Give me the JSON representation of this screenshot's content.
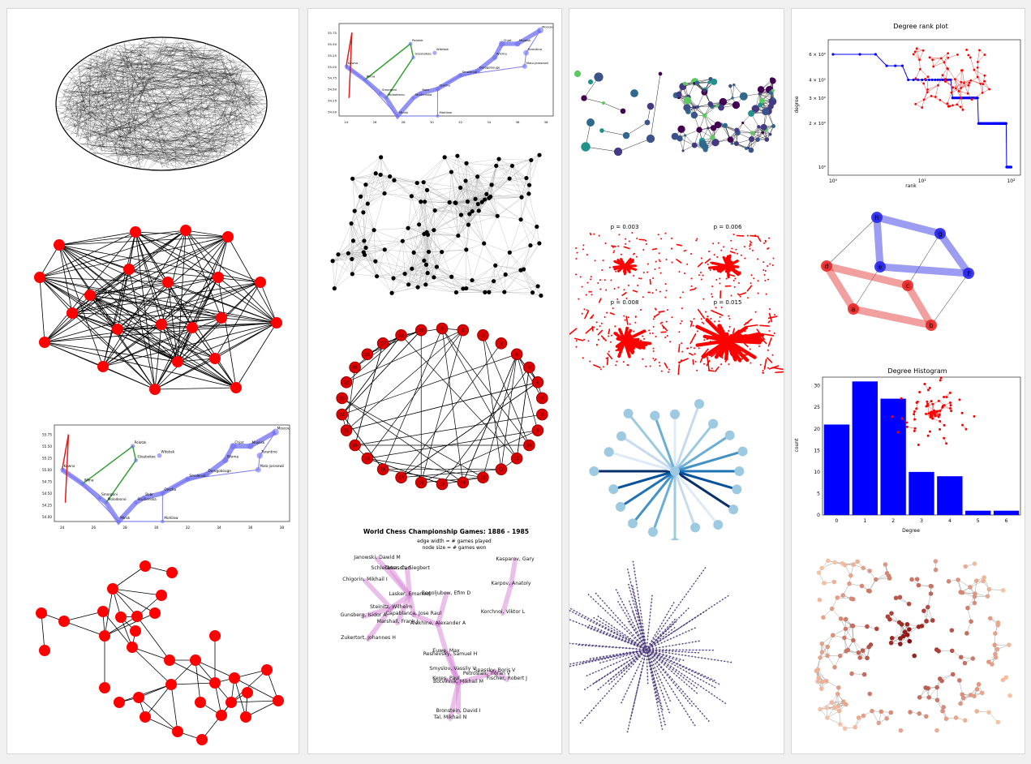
{
  "gallery": {
    "colors": {
      "node_red": "#ff0000",
      "node_black": "#000000",
      "node_blue": "#0000ff",
      "edge_black": "#000000",
      "edge_gray": "#b8b8b8",
      "chess_purple": "#d88cd8",
      "route_blue": "#6f6ff2",
      "route_green": "#34a234",
      "route_red": "#e41a1c",
      "tree_purple": "#4a3a7a",
      "orange_light": "#f6c2a6",
      "orange_dark": "#8a0a0a"
    },
    "napoleon": {
      "cities": [
        {
          "name": "Moscou",
          "x": 37.6,
          "y": 55.8
        },
        {
          "name": "Chjat",
          "x": 34.9,
          "y": 55.5
        },
        {
          "name": "Mojaisk",
          "x": 36.0,
          "y": 55.5
        },
        {
          "name": "Tarantino",
          "x": 36.6,
          "y": 55.3
        },
        {
          "name": "Wixma",
          "x": 34.4,
          "y": 55.2
        },
        {
          "name": "Malo-jarosewii",
          "x": 36.5,
          "y": 55.0
        },
        {
          "name": "Dorogobouge",
          "x": 33.2,
          "y": 54.9
        },
        {
          "name": "Smolensk",
          "x": 32.0,
          "y": 54.8
        },
        {
          "name": "Orscha",
          "x": 30.4,
          "y": 54.5
        },
        {
          "name": "Witebsk",
          "x": 30.2,
          "y": 55.3
        },
        {
          "name": "Polotzk",
          "x": 28.5,
          "y": 55.5
        },
        {
          "name": "Gloubokoe",
          "x": 28.7,
          "y": 55.2
        },
        {
          "name": "Kowno",
          "x": 24.0,
          "y": 55.0
        },
        {
          "name": "Wilna",
          "x": 25.3,
          "y": 54.7
        },
        {
          "name": "Smorgoni",
          "x": 26.4,
          "y": 54.4
        },
        {
          "name": "Molodexno",
          "x": 26.8,
          "y": 54.3
        },
        {
          "name": "Minsk",
          "x": 27.6,
          "y": 53.9
        },
        {
          "name": "Studienska",
          "x": 28.7,
          "y": 54.3
        },
        {
          "name": "Bobr",
          "x": 29.2,
          "y": 54.4
        },
        {
          "name": "Mohilow",
          "x": 30.4,
          "y": 53.9
        }
      ]
    },
    "chess": {
      "title": "World Chess Championship Games: 1886 - 1985",
      "note1": "edge width = # games played",
      "note2": "node size = # games won",
      "players": [
        {
          "name": "Janowski, Dawid M"
        },
        {
          "name": "Schlechter, Carl"
        },
        {
          "name": "Marshall, Frank J"
        },
        {
          "name": "Tarrasch, Siegbert"
        },
        {
          "name": "Chigorin, Mikhail I"
        },
        {
          "name": "Lasker, Emanuel"
        },
        {
          "name": "Bogoljubow, Efim D"
        },
        {
          "name": "Steinitz, Wilhelm"
        },
        {
          "name": "Gunsberg, Isidor A"
        },
        {
          "name": "Capablanca, Jose Raul"
        },
        {
          "name": "Alekhine, Alexander A"
        },
        {
          "name": "Zukertort, Johannes H"
        },
        {
          "name": "Euwe, Max"
        },
        {
          "name": "Botvinnik, Mikhail M"
        },
        {
          "name": "Smyslov, Vassily V"
        },
        {
          "name": "Reshevsky, Samuel H"
        },
        {
          "name": "Petrosian, Tigran V"
        },
        {
          "name": "Spassky, Boris V"
        },
        {
          "name": "Keres, Paul"
        },
        {
          "name": "Fischer, Robert J"
        },
        {
          "name": "Bronstein, David I"
        },
        {
          "name": "Tal, Mikhail N"
        },
        {
          "name": "Kasparov, Gary"
        },
        {
          "name": "Karpov, Anatoly"
        },
        {
          "name": "Korchnoi, Viktor L"
        }
      ]
    },
    "percolation": {
      "labels": [
        "p =  0.003",
        "p =  0.006",
        "p =  0.008",
        "p =  0.015"
      ]
    },
    "cube": {
      "nodes": [
        {
          "name": "a"
        },
        {
          "name": "b"
        },
        {
          "name": "c"
        },
        {
          "name": "d"
        },
        {
          "name": "e"
        },
        {
          "name": "f"
        },
        {
          "name": "g"
        },
        {
          "name": "h"
        }
      ]
    },
    "circular": {
      "node_count": 30
    }
  },
  "chart_data": [
    {
      "type": "line",
      "title": "Degree rank plot",
      "xlabel": "rank",
      "ylabel": "degree",
      "x_scale": "log",
      "y_scale": "log",
      "x_ticks": [
        "10⁰",
        "10¹",
        "10²"
      ],
      "y_ticks": [
        "6 × 10⁰",
        "4 × 10⁰",
        "3 × 10⁰",
        "2 × 10⁰",
        "10⁰"
      ],
      "ylim": [
        0.95,
        7
      ],
      "series": [
        {
          "x": [
            1,
            2,
            3,
            4,
            5,
            6,
            7,
            8,
            9,
            10,
            11,
            12,
            13,
            14,
            15,
            16,
            17,
            18,
            19,
            20,
            21,
            22,
            23,
            24,
            25,
            26,
            27,
            28,
            29,
            30,
            31,
            32,
            33,
            34,
            35,
            36,
            37,
            38,
            39,
            40,
            41,
            42,
            43,
            44,
            45,
            46,
            47,
            48,
            49,
            50,
            51,
            52,
            53,
            54,
            55,
            56,
            57,
            58,
            59,
            60,
            61,
            62,
            63,
            64,
            65,
            66,
            67,
            68,
            69,
            70,
            71,
            72,
            73,
            74,
            75,
            76,
            77,
            78,
            79,
            80,
            81,
            82,
            83,
            84,
            85,
            86,
            87,
            88,
            89,
            90,
            91,
            92,
            93,
            94,
            95,
            96,
            97,
            98,
            99,
            100
          ],
          "y": [
            6,
            6,
            6,
            5,
            5,
            5,
            4,
            4,
            4,
            4,
            4,
            4,
            4,
            4,
            4,
            4,
            4,
            4,
            4,
            4,
            4,
            3,
            3,
            3,
            3,
            3,
            3,
            3,
            3,
            3,
            3,
            3,
            3,
            3,
            3,
            3,
            3,
            3,
            3,
            3,
            3,
            3,
            2,
            2,
            2,
            2,
            2,
            2,
            2,
            2,
            2,
            2,
            2,
            2,
            2,
            2,
            2,
            2,
            2,
            2,
            2,
            2,
            2,
            2,
            2,
            2,
            2,
            2,
            2,
            2,
            2,
            2,
            2,
            2,
            2,
            2,
            2,
            2,
            2,
            2,
            2,
            2,
            2,
            2,
            2,
            2,
            2,
            2,
            1,
            1,
            1,
            1,
            1,
            1,
            1,
            1,
            1,
            1,
            1,
            1
          ]
        }
      ],
      "grid": false,
      "legend": "none"
    },
    {
      "type": "bar",
      "title": "Degree Histogram",
      "xlabel": "Degree",
      "ylabel": "count",
      "categories": [
        "0",
        "1",
        "2",
        "3",
        "4",
        "5",
        "6"
      ],
      "values": [
        21,
        31,
        27,
        10,
        9,
        1,
        1
      ],
      "y_ticks": [
        "0",
        "5",
        "10",
        "15",
        "20",
        "25",
        "30"
      ],
      "ylim": [
        0,
        32
      ],
      "grid": false,
      "legend": "none"
    }
  ]
}
